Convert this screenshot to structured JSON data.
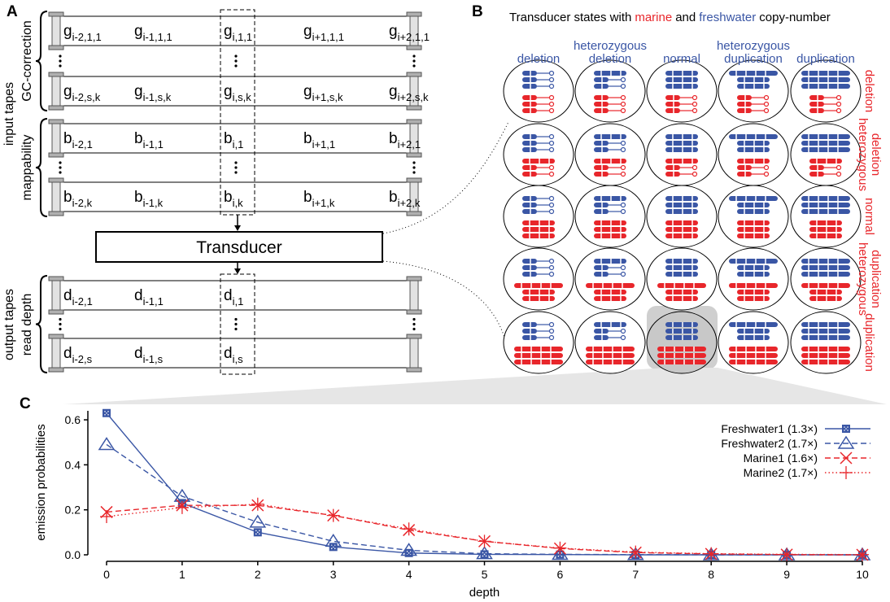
{
  "panel_a": {
    "label": "A",
    "group_labels": {
      "input": "input tapes",
      "gc": "GC-correction",
      "map": "mappability",
      "output": "output tapes",
      "depth": "read depth"
    },
    "transducer": "Transducer",
    "tapes": [
      [
        [
          "g",
          "i-2,1,1"
        ],
        [
          "g",
          "i-1,1,1"
        ],
        [
          "g",
          "i,1,1"
        ],
        [
          "g",
          "i+1,1,1"
        ],
        [
          "g",
          "i+2,1,1"
        ]
      ],
      [
        [
          "g",
          "i-2,s,k"
        ],
        [
          "g",
          "i-1,s,k"
        ],
        [
          "g",
          "i,s,k"
        ],
        [
          "g",
          "i+1,s,k"
        ],
        [
          "g",
          "i+2,s,k"
        ]
      ],
      [
        [
          "b",
          "i-2,1"
        ],
        [
          "b",
          "i-1,1"
        ],
        [
          "b",
          "i,1"
        ],
        [
          "b",
          "i+1,1"
        ],
        [
          "b",
          "i+2,1"
        ]
      ],
      [
        [
          "b",
          "i-2,k"
        ],
        [
          "b",
          "i-1,k"
        ],
        [
          "b",
          "i,k"
        ],
        [
          "b",
          "i+1,k"
        ],
        [
          "b",
          "i+2,k"
        ]
      ],
      [
        [
          "d",
          "i-2,1"
        ],
        [
          "d",
          "i-1,1"
        ],
        [
          "d",
          "i,1"
        ]
      ],
      [
        [
          "d",
          "i-2,s"
        ],
        [
          "d",
          "i-1,s"
        ],
        [
          "d",
          "i,s"
        ]
      ]
    ]
  },
  "panel_b": {
    "label": "B",
    "title": [
      "Transducer states with",
      "marine",
      "and",
      "freshwater",
      "copy-number"
    ],
    "columns": [
      [
        "deletion"
      ],
      [
        "heterozygous",
        "deletion"
      ],
      [
        "normal"
      ],
      [
        "heterozygous",
        "duplication"
      ],
      [
        "duplication"
      ]
    ],
    "rows": [
      [
        "deletion"
      ],
      [
        "heterozygous",
        "deletion"
      ],
      [
        "normal"
      ],
      [
        "heterozygous",
        "duplication"
      ],
      [
        "duplication"
      ]
    ]
  },
  "chart_data": {
    "type": "line",
    "panel_label": "C",
    "x_label": "depth",
    "y_label": "emission probabilities",
    "x": [
      0,
      1,
      2,
      3,
      4,
      5,
      6,
      7,
      8,
      9,
      10
    ],
    "xlim": [
      0,
      10
    ],
    "xticks": [
      0,
      1,
      2,
      3,
      4,
      5,
      6,
      7,
      8,
      9,
      10
    ],
    "ylim": [
      0,
      0.64
    ],
    "yticks": [
      {
        "value": 0,
        "label": "0.0"
      },
      0.2,
      0.4,
      0.6
    ],
    "grid": false,
    "legend": "upper right",
    "series": [
      {
        "name": "Freshwater1 (1.3×)",
        "color": "#3a56a5",
        "line_style": "solid",
        "marker": "square",
        "values": [
          0.63,
          0.23,
          0.1,
          0.035,
          0.008,
          0.002,
          0.001,
          0,
          0,
          0,
          0
        ]
      },
      {
        "name": "Freshwater2 (1.7×)",
        "color": "#3a56a5",
        "line_style": "dashed",
        "marker": "triangle",
        "values": [
          0.49,
          0.26,
          0.145,
          0.06,
          0.02,
          0.005,
          0.002,
          0.001,
          0,
          0,
          0
        ]
      },
      {
        "name": "Marine1 (1.6×)",
        "color": "#e8262b",
        "line_style": "dashed",
        "marker": "x",
        "values": [
          0.19,
          0.22,
          0.22,
          0.175,
          0.11,
          0.06,
          0.028,
          0.01,
          0.004,
          0.001,
          0
        ]
      },
      {
        "name": "Marine2 (1.7×)",
        "color": "#e8262b",
        "line_style": "dotted",
        "marker": "plus",
        "values": [
          0.17,
          0.21,
          0.225,
          0.175,
          0.115,
          0.06,
          0.03,
          0.012,
          0.005,
          0.002,
          0.001
        ]
      }
    ]
  }
}
